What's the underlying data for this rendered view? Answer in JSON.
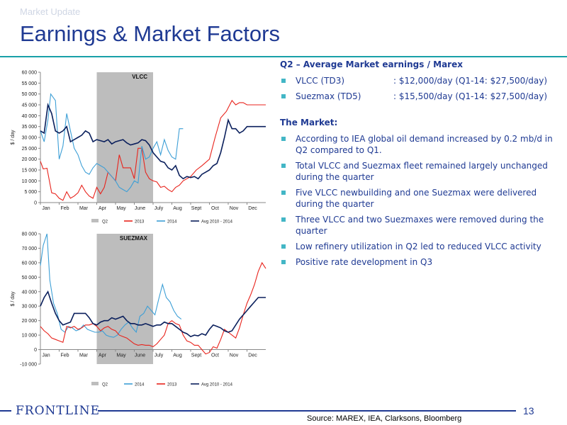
{
  "header": {
    "kicker": "Market Update",
    "title": "Earnings & Market Factors"
  },
  "panel": {
    "heading": "Q2 – Average Market earnings / Marex",
    "rates": [
      {
        "label": "VLCC (TD3)",
        "value": ": $12,000/day (Q1-14: $27,500/day)"
      },
      {
        "label": "Suezmax (TD5)",
        "value": ": $15,500/day (Q1-14: $27,500/day)"
      }
    ],
    "market_heading": "The Market:",
    "bullets": [
      "According to IEA global oil demand increased by 0.2 mb/d in Q2 compared to Q1.",
      "Total VLCC and Suezmax fleet remained largely unchanged during the quarter",
      "Five VLCC newbuilding and one Suezmax were delivered during the quarter",
      "Three VLCC and two Suezmaxes were removed during the quarter",
      "Low refinery utilization in Q2 led to reduced VLCC activity",
      "Positive rate development in Q3"
    ]
  },
  "footer": {
    "logo": "FRONTLINE",
    "page": "13",
    "source": "Source: MAREX, IEA, Clarksons, Bloomberg"
  },
  "colors": {
    "y2013": "#e8231c",
    "y2014": "#3d9fd6",
    "avg": "#0a1f5c",
    "q2": "#bdbdbd",
    "brand": "#1f3a93",
    "accent": "#18a0a8"
  },
  "chart_data": [
    {
      "type": "line",
      "title": "VLCC",
      "ylabel": "$ / day",
      "ylim": [
        0,
        60000
      ],
      "yticks": [
        0,
        5000,
        10000,
        15000,
        20000,
        25000,
        30000,
        35000,
        40000,
        45000,
        50000,
        55000,
        60000
      ],
      "ytick_labels": [
        "0",
        "5 000",
        "10 000",
        "15 000",
        "20 000",
        "25 000",
        "30 000",
        "35 000",
        "40 000",
        "45 000",
        "50 000",
        "55 000",
        "60 000"
      ],
      "categories": [
        "Jan",
        "Feb",
        "Mar",
        "Apr",
        "May",
        "June",
        "July",
        "Aug",
        "Sept",
        "Oct",
        "Nov",
        "Dec"
      ],
      "q2_shade": {
        "from": 3,
        "to": 6,
        "label": "Q2"
      },
      "legend_position": "bottom",
      "series": [
        {
          "name": "2013",
          "color": "#e8231c",
          "x": [
            0,
            0.15,
            0.35,
            0.6,
            0.8,
            1.0,
            1.2,
            1.4,
            1.6,
            1.8,
            2.0,
            2.2,
            2.4,
            2.6,
            2.8,
            3.0,
            3.2,
            3.4,
            3.6,
            3.8,
            4.0,
            4.2,
            4.4,
            4.6,
            4.8,
            5.0,
            5.2,
            5.4,
            5.6,
            5.8,
            6.0,
            6.2,
            6.4,
            6.6,
            6.8,
            7.0,
            7.2,
            7.4,
            7.6,
            7.8,
            8.0,
            8.3,
            8.6,
            9.0,
            9.3,
            9.6,
            9.9,
            10.2,
            10.4,
            10.6,
            10.8,
            11.0,
            11.2,
            11.4,
            11.6,
            11.8,
            12.0
          ],
          "y": [
            19000,
            15500,
            15800,
            4500,
            4000,
            2000,
            1000,
            5000,
            2000,
            3000,
            4500,
            8000,
            5000,
            3000,
            2000,
            7000,
            4000,
            7000,
            14000,
            12000,
            10000,
            22000,
            16000,
            16000,
            16000,
            11000,
            25000,
            25000,
            14000,
            11000,
            10000,
            9500,
            7000,
            7500,
            6000,
            5000,
            7000,
            8000,
            10000,
            11000,
            12000,
            15000,
            17000,
            20000,
            30000,
            39000,
            42000,
            47000,
            45000,
            46000,
            46000,
            45000,
            45000,
            45000,
            45000,
            45000,
            45000
          ]
        },
        {
          "name": "2014",
          "color": "#3d9fd6",
          "x": [
            0,
            0.2,
            0.4,
            0.55,
            0.8,
            1.0,
            1.2,
            1.4,
            1.6,
            1.8,
            2.0,
            2.2,
            2.4,
            2.6,
            2.8,
            3.0,
            3.2,
            3.4,
            3.6,
            3.8,
            4.0,
            4.2,
            4.4,
            4.6,
            4.8,
            5.0,
            5.2,
            5.4,
            5.6,
            5.8,
            6.0,
            6.2,
            6.4,
            6.6,
            6.8,
            7.0,
            7.2,
            7.4,
            7.6
          ],
          "y": [
            33000,
            28000,
            38000,
            50000,
            47000,
            20000,
            26000,
            41000,
            33000,
            25000,
            22000,
            17000,
            14000,
            13000,
            16000,
            18000,
            17000,
            16000,
            14000,
            12000,
            10000,
            7000,
            6000,
            5000,
            7000,
            10000,
            9000,
            26000,
            20000,
            21000,
            25000,
            28000,
            22000,
            29000,
            24000,
            21000,
            20000,
            34000,
            34000
          ]
        },
        {
          "name": "Avg 2010 - 2014",
          "color": "#0a1f5c",
          "x": [
            0,
            0.2,
            0.4,
            0.6,
            0.8,
            1.0,
            1.2,
            1.4,
            1.6,
            1.8,
            2.0,
            2.2,
            2.4,
            2.6,
            2.8,
            3.0,
            3.2,
            3.4,
            3.6,
            3.8,
            4.0,
            4.2,
            4.4,
            4.6,
            4.8,
            5.0,
            5.2,
            5.4,
            5.6,
            5.8,
            6.0,
            6.2,
            6.4,
            6.6,
            6.8,
            7.0,
            7.2,
            7.4,
            7.6,
            7.8,
            8.0,
            8.2,
            8.4,
            8.6,
            8.8,
            9.0,
            9.2,
            9.4,
            9.6,
            9.8,
            10.0,
            10.2,
            10.4,
            10.6,
            10.8,
            11.0,
            11.2,
            11.4,
            11.6,
            11.8,
            12.0
          ],
          "y": [
            33000,
            32000,
            45000,
            41000,
            33000,
            32000,
            33000,
            35000,
            28000,
            29000,
            30000,
            31000,
            33000,
            32000,
            28000,
            29000,
            28500,
            28000,
            29000,
            27000,
            28000,
            28500,
            29000,
            27500,
            26500,
            27000,
            27500,
            29000,
            28500,
            26500,
            23000,
            21000,
            19000,
            18500,
            16000,
            15000,
            17000,
            12500,
            11000,
            12000,
            11500,
            12000,
            11000,
            13000,
            14000,
            15000,
            17000,
            18000,
            23000,
            30000,
            38000,
            34000,
            34000,
            32000,
            33000,
            35000,
            35000,
            35000,
            35000,
            35000,
            35000
          ]
        }
      ]
    },
    {
      "type": "line",
      "title": "SUEZMAX",
      "ylabel": "$ / day",
      "ylim": [
        -10000,
        80000
      ],
      "yticks": [
        -10000,
        0,
        10000,
        20000,
        30000,
        40000,
        50000,
        60000,
        70000,
        80000
      ],
      "ytick_labels": [
        "-10 000",
        "0",
        "10 000",
        "20 000",
        "30 000",
        "40 000",
        "50 000",
        "60 000",
        "70 000",
        "80 000"
      ],
      "categories": [
        "Jan",
        "Feb",
        "Mar",
        "Apr",
        "May",
        "June",
        "July",
        "Aug",
        "Sept",
        "Oct",
        "Nov",
        "Dec"
      ],
      "q2_shade": {
        "from": 3,
        "to": 6,
        "label": "Q2"
      },
      "legend_position": "bottom",
      "series": [
        {
          "name": "2014",
          "color": "#3d9fd6",
          "x": [
            0,
            0.15,
            0.35,
            0.5,
            0.7,
            0.9,
            1.1,
            1.3,
            1.5,
            1.7,
            1.9,
            2.1,
            2.3,
            2.5,
            2.7,
            2.9,
            3.1,
            3.3,
            3.5,
            3.7,
            3.9,
            4.1,
            4.3,
            4.5,
            4.7,
            4.9,
            5.1,
            5.3,
            5.5,
            5.7,
            5.9,
            6.1,
            6.3,
            6.5,
            6.7,
            6.9,
            7.1,
            7.3,
            7.5
          ],
          "y": [
            58000,
            72000,
            80000,
            48000,
            32000,
            25000,
            14000,
            12000,
            16000,
            15000,
            13000,
            14000,
            17000,
            14000,
            13000,
            12000,
            12000,
            13000,
            10000,
            9000,
            8500,
            10000,
            14000,
            17000,
            19000,
            15000,
            12000,
            23000,
            25000,
            30000,
            27000,
            24000,
            35000,
            45000,
            36000,
            33000,
            27000,
            23000,
            21000
          ]
        },
        {
          "name": "2013",
          "color": "#e8231c",
          "x": [
            0,
            0.2,
            0.4,
            0.6,
            0.8,
            1.0,
            1.2,
            1.4,
            1.6,
            1.8,
            2.0,
            2.2,
            2.4,
            2.6,
            2.8,
            3.0,
            3.2,
            3.4,
            3.6,
            3.8,
            4.0,
            4.2,
            4.4,
            4.6,
            4.8,
            5.0,
            5.2,
            5.4,
            5.6,
            5.8,
            6.0,
            6.2,
            6.4,
            6.6,
            6.8,
            7.0,
            7.2,
            7.4,
            7.6,
            7.8,
            8.0,
            8.2,
            8.4,
            8.6,
            8.8,
            9.0,
            9.2,
            9.4,
            9.6,
            9.8,
            10.0,
            10.2,
            10.4,
            10.6,
            10.8,
            11.0,
            11.2,
            11.4,
            11.6,
            11.8,
            12.0
          ],
          "y": [
            16000,
            13000,
            11000,
            8000,
            7000,
            6000,
            5000,
            16000,
            15000,
            16000,
            14000,
            15000,
            17000,
            17000,
            18000,
            16000,
            13000,
            15000,
            16000,
            14000,
            13000,
            10000,
            9000,
            8000,
            6000,
            4000,
            3000,
            3500,
            3000,
            3000,
            2000,
            4000,
            7000,
            10000,
            18000,
            20000,
            18000,
            17000,
            10000,
            6000,
            5000,
            3000,
            3000,
            0,
            -3000,
            -2000,
            2000,
            1000,
            7000,
            14000,
            12000,
            10000,
            8000,
            15000,
            24000,
            32000,
            38000,
            45000,
            54000,
            60000,
            56000
          ]
        },
        {
          "name": "Avg 2010 - 2014",
          "color": "#0a1f5c",
          "x": [
            0,
            0.2,
            0.4,
            0.6,
            0.8,
            1.0,
            1.2,
            1.4,
            1.6,
            1.8,
            2.0,
            2.2,
            2.4,
            2.6,
            2.8,
            3.0,
            3.2,
            3.4,
            3.6,
            3.8,
            4.0,
            4.2,
            4.4,
            4.6,
            4.8,
            5.0,
            5.2,
            5.4,
            5.6,
            5.8,
            6.0,
            6.2,
            6.4,
            6.6,
            6.8,
            7.0,
            7.2,
            7.4,
            7.6,
            7.8,
            8.0,
            8.2,
            8.4,
            8.6,
            8.8,
            9.0,
            9.2,
            9.4,
            9.6,
            9.8,
            10.0,
            10.2,
            10.4,
            10.6,
            10.8,
            11.0,
            11.2,
            11.4,
            11.6,
            11.8,
            12.0
          ],
          "y": [
            30000,
            36000,
            40000,
            32000,
            25000,
            20000,
            17000,
            18000,
            19000,
            25000,
            25000,
            25000,
            25000,
            22000,
            18000,
            17000,
            19000,
            20000,
            20000,
            22000,
            21000,
            22000,
            23000,
            20000,
            18000,
            18000,
            17000,
            17000,
            18000,
            17000,
            16000,
            17000,
            17000,
            19000,
            18000,
            18000,
            16000,
            14000,
            12000,
            11000,
            9000,
            10000,
            9500,
            11000,
            10000,
            14000,
            17000,
            16000,
            15000,
            13000,
            12000,
            13000,
            17000,
            21000,
            24000,
            27000,
            30000,
            33000,
            36000,
            36000,
            36000
          ]
        }
      ]
    }
  ]
}
